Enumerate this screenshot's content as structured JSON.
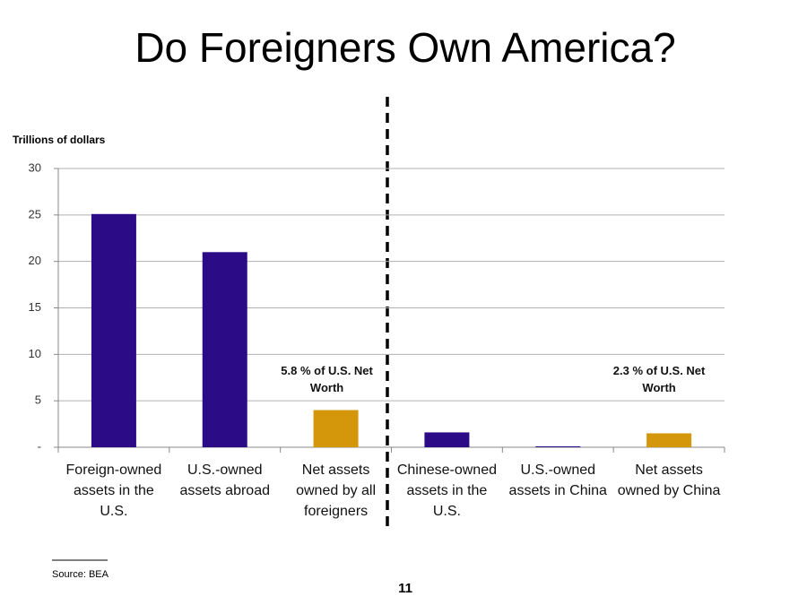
{
  "chart_data": {
    "type": "bar",
    "title": "Do Foreigners Own America?",
    "y_axis_label": "Trillions of dollars",
    "categories": [
      "Foreign-owned assets in the U.S.",
      "U.S.-owned assets abroad",
      "Net assets owned by all foreigners",
      "Chinese-owned assets in the U.S.",
      "U.S.-owned assets in China",
      "Net assets owned by China"
    ],
    "values": [
      25.1,
      21,
      4,
      1.6,
      0.1,
      1.5
    ],
    "colors": [
      "#2b0c86",
      "#2b0c86",
      "#d4960a",
      "#2b0c86",
      "#2b0c86",
      "#d4960a"
    ],
    "ylim": [
      0,
      30
    ],
    "yticks": [
      {
        "value": 0,
        "label": "-"
      },
      5,
      10,
      15,
      20,
      25,
      30
    ],
    "grid": true,
    "annotations": [
      "5.8 % of U.S. Net Worth",
      "2.3 % of U.S. Net Worth"
    ]
  },
  "source": "Source: BEA",
  "page_number": "11"
}
